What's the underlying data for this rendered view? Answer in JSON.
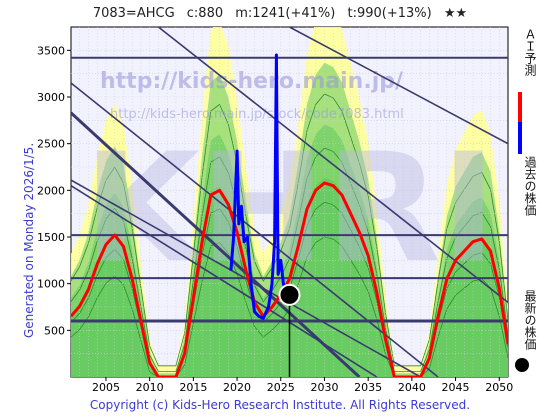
{
  "header": {
    "ticker": "7083=AHCG",
    "current": "c:880",
    "max_info": "m:1241(+41%)",
    "target_info": "t:990(+13%)",
    "stars": "★★"
  },
  "side_text": "Generated on Monday 2026/1/5.",
  "footer": "Copyright (c) Kids-Hero Research Institute. All Rights Reserved.",
  "watermark": {
    "url1": "http://kids-hero.main.jp/",
    "url2": "http://kids-hero.main.jp/stock/code7083.html"
  },
  "legend": [
    {
      "label": "ＡＩ予測",
      "color": "#ff0000"
    },
    {
      "label": "過去の株価",
      "color": "#0000ff"
    },
    {
      "label": "最新の株価",
      "color": "#000000"
    }
  ],
  "colors": {
    "ai_forecast": "#ff0000",
    "past_price": "#0000ff",
    "latest_marker": "#000000",
    "trend_lines": "#3a3a6e",
    "green_band": "#5cc85c",
    "yellow_band": "#ffff99",
    "blue_band": "#c8c8f0"
  },
  "chart_data": {
    "type": "line",
    "xlim": [
      2001,
      2051
    ],
    "ylim": [
      0,
      3750
    ],
    "x_ticks": [
      2005,
      2010,
      2015,
      2020,
      2025,
      2030,
      2035,
      2040,
      2045,
      2050
    ],
    "y_ticks": [
      500,
      1000,
      1500,
      2000,
      2500,
      3000,
      3500
    ],
    "grid": true,
    "legend_position": "right",
    "horizontal_lines": [
      600,
      1060,
      1520,
      3420
    ],
    "diagonal_lines": [
      {
        "x": [
          2001,
          2034
        ],
        "y": [
          2830,
          0
        ]
      },
      {
        "x": [
          2001,
          2036
        ],
        "y": [
          2050,
          0
        ]
      },
      {
        "x": [
          2001,
          2041
        ],
        "y": [
          2110,
          0
        ]
      },
      {
        "x": [
          2001,
          2043
        ],
        "y": [
          3150,
          0
        ]
      },
      {
        "x": [
          2011,
          2051
        ],
        "y": [
          3750,
          800
        ]
      },
      {
        "x": [
          2026,
          2051
        ],
        "y": [
          3750,
          2500
        ]
      }
    ],
    "series": [
      {
        "name": "ＡＩ予測",
        "x": [
          2001,
          2002,
          2003,
          2004,
          2005,
          2006,
          2007,
          2008,
          2009,
          2010,
          2011,
          2012,
          2013,
          2014,
          2015,
          2016,
          2017,
          2018,
          2019,
          2020,
          2021,
          2022,
          2023,
          2024,
          2025,
          2026,
          2027,
          2028,
          2029,
          2030,
          2031,
          2032,
          2033,
          2034,
          2035,
          2036,
          2037,
          2038,
          2039,
          2040,
          2041,
          2042,
          2043,
          2044,
          2045,
          2046,
          2047,
          2048,
          2049,
          2050,
          2051
        ],
        "values": [
          650,
          760,
          940,
          1210,
          1420,
          1520,
          1400,
          1050,
          600,
          150,
          0,
          0,
          0,
          250,
          850,
          1450,
          1950,
          2000,
          1850,
          1550,
          1150,
          800,
          650,
          750,
          880,
          1050,
          1400,
          1800,
          2000,
          2080,
          2050,
          1950,
          1750,
          1550,
          1300,
          900,
          400,
          0,
          0,
          0,
          0,
          200,
          650,
          1050,
          1250,
          1350,
          1450,
          1480,
          1350,
          950,
          350
        ]
      },
      {
        "name": "過去の株価",
        "x": [
          2019.3,
          2019.6,
          2020.0,
          2020.2,
          2020.5,
          2020.8,
          2021.2,
          2021.6,
          2022.0,
          2022.5,
          2023.0,
          2023.6,
          2024.0,
          2024.3,
          2024.5,
          2024.7,
          2025.0,
          2025.3,
          2025.6,
          2025.9
        ],
        "values": [
          1140,
          1500,
          2420,
          1640,
          1830,
          1450,
          1500,
          1000,
          700,
          650,
          630,
          750,
          1000,
          1450,
          3450,
          1100,
          1250,
          1000,
          900,
          880
        ]
      }
    ],
    "latest": {
      "x": 2026,
      "y": 880
    }
  }
}
